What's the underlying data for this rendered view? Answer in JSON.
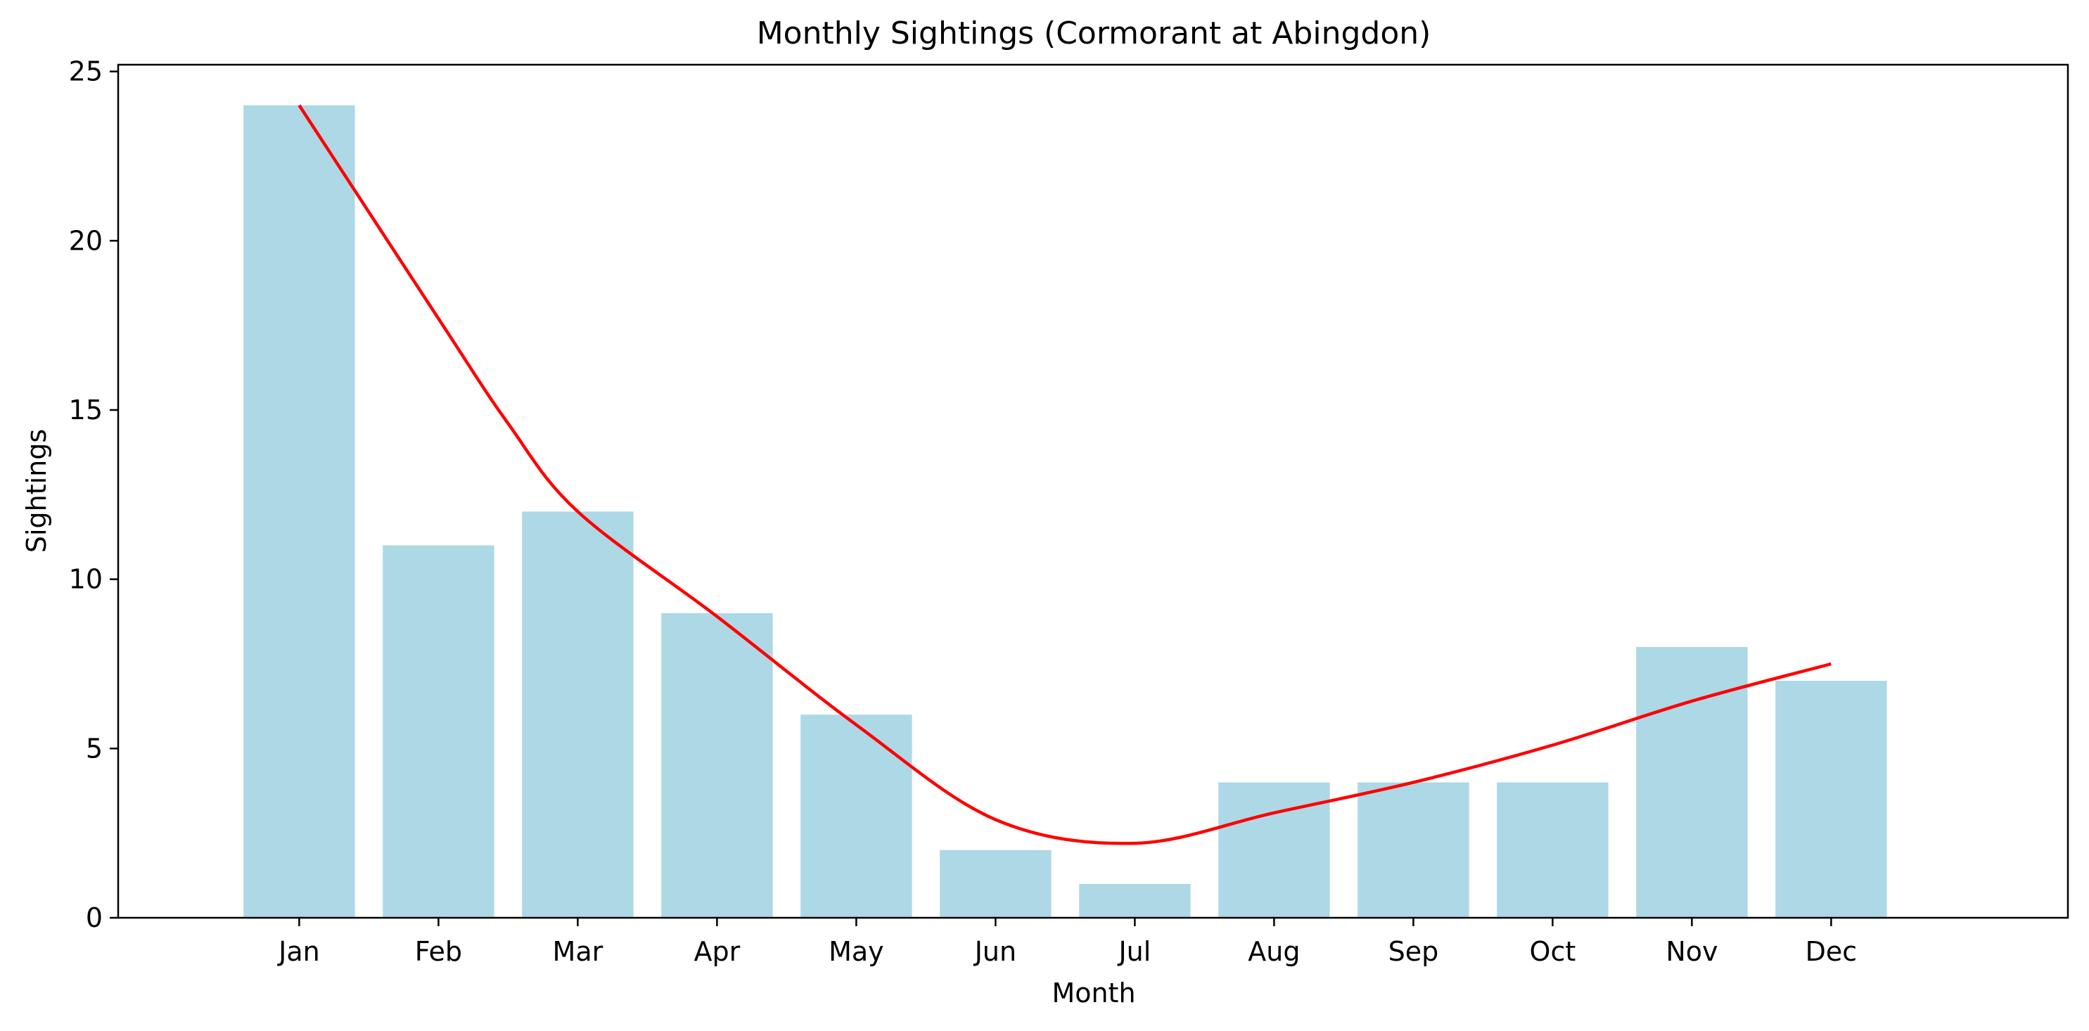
{
  "chart_data": {
    "type": "bar",
    "title": "Monthly Sightings (Cormorant at Abingdon)",
    "xlabel": "Month",
    "ylabel": "Sightings",
    "ylim": [
      0,
      25.2
    ],
    "yticks": [
      0,
      5,
      10,
      15,
      20,
      25
    ],
    "categories": [
      "Jan",
      "Feb",
      "Mar",
      "Apr",
      "May",
      "Jun",
      "Jul",
      "Aug",
      "Sep",
      "Oct",
      "Nov",
      "Dec"
    ],
    "values": [
      24,
      11,
      12,
      9,
      6,
      2,
      1,
      4,
      4,
      4,
      8,
      7
    ],
    "trend_line": {
      "type": "line",
      "x": [
        0,
        1,
        1.5,
        2,
        3,
        4,
        5,
        6,
        7,
        8,
        9,
        10,
        11
      ],
      "y": [
        24,
        17.7,
        14.6,
        12,
        8.9,
        5.7,
        2.9,
        2.2,
        3.1,
        4.0,
        5.1,
        6.4,
        7.5
      ]
    },
    "colors": {
      "bar": "#add8e6",
      "line": "#ff0000"
    },
    "grid": false,
    "legend": "none"
  }
}
